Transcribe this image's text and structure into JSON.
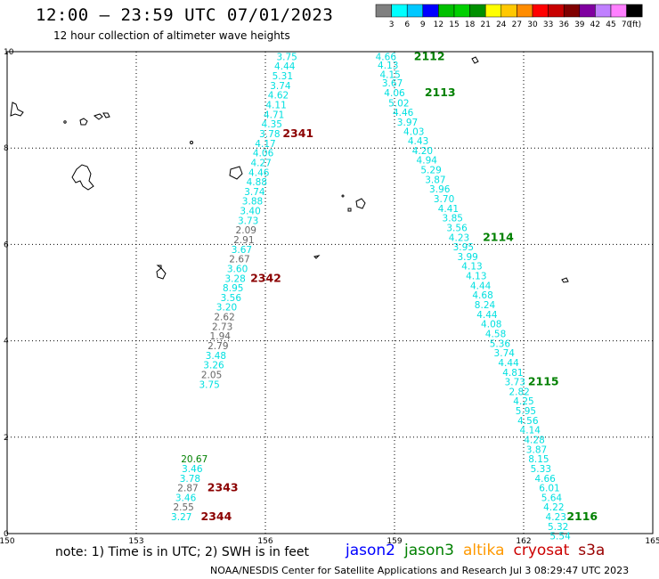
{
  "title": "12:00 – 23:59 UTC 07/01/2023",
  "subtitle": "12 hour collection of altimeter wave heights",
  "note": "note:  1) Time is in UTC;  2) SWH is in feet",
  "satellites": [
    {
      "name": "jason2",
      "color": "#0000ff"
    },
    {
      "name": "jason3",
      "color": "#008000"
    },
    {
      "name": "altika",
      "color": "#ff9900"
    },
    {
      "name": "cryosat",
      "color": "#cc0000"
    },
    {
      "name": "s3a",
      "color": "#990000"
    }
  ],
  "credit": "NOAA/NESDIS Center for Satellite Applications and Research    Jul  3 08:29:47 UTC 2023",
  "colorbar": {
    "levels": [
      "3",
      "6",
      "9",
      "12",
      "15",
      "18",
      "21",
      "24",
      "27",
      "30",
      "33",
      "36",
      "39",
      "42",
      "45",
      "70"
    ],
    "unit": "(ft)",
    "colors": [
      "#808080",
      "#00ffff",
      "#00c8ff",
      "#0000ff",
      "#00c000",
      "#00d000",
      "#009000",
      "#ffff00",
      "#ffc800",
      "#ff8c00",
      "#ff0000",
      "#c80000",
      "#800000",
      "#8000a0",
      "#c080ff",
      "#ff80ff",
      "#000000"
    ]
  },
  "chart_data": {
    "type": "scatter",
    "xlabel": "",
    "ylabel": "",
    "xlim": [
      150,
      165
    ],
    "ylim": [
      0,
      10
    ],
    "x_ticks": [
      "150",
      "153",
      "156",
      "159",
      "162",
      "165"
    ],
    "y_ticks": [
      "0",
      "2",
      "4",
      "6",
      "8",
      "10"
    ],
    "grid": true,
    "series": [
      {
        "name": "jason3",
        "text_color": "#00e0e0",
        "points": [
          {
            "x": 158.8,
            "y": 9.9,
            "v": "4.66"
          },
          {
            "x": 158.85,
            "y": 9.72,
            "v": "4.13"
          },
          {
            "x": 158.9,
            "y": 9.53,
            "v": "4.15"
          },
          {
            "x": 158.95,
            "y": 9.35,
            "v": "3.67"
          },
          {
            "x": 159.0,
            "y": 9.15,
            "v": "4.06"
          },
          {
            "x": 159.1,
            "y": 8.94,
            "v": "5.02"
          },
          {
            "x": 159.2,
            "y": 8.74,
            "v": "4.46"
          },
          {
            "x": 159.3,
            "y": 8.54,
            "v": "3.97"
          },
          {
            "x": 159.45,
            "y": 8.35,
            "v": "4.03"
          },
          {
            "x": 159.55,
            "y": 8.15,
            "v": "4.43"
          },
          {
            "x": 159.65,
            "y": 7.95,
            "v": "4.20"
          },
          {
            "x": 159.75,
            "y": 7.75,
            "v": "4.94"
          },
          {
            "x": 159.85,
            "y": 7.55,
            "v": "5.29"
          },
          {
            "x": 159.95,
            "y": 7.35,
            "v": "3.87"
          },
          {
            "x": 160.05,
            "y": 7.15,
            "v": "3.96"
          },
          {
            "x": 160.15,
            "y": 6.95,
            "v": "3.70"
          },
          {
            "x": 160.25,
            "y": 6.75,
            "v": "4.41"
          },
          {
            "x": 160.35,
            "y": 6.55,
            "v": "3.85"
          },
          {
            "x": 160.45,
            "y": 6.35,
            "v": "3.56"
          },
          {
            "x": 160.5,
            "y": 6.15,
            "v": "4.23"
          },
          {
            "x": 160.6,
            "y": 5.95,
            "v": "3.95"
          },
          {
            "x": 160.7,
            "y": 5.75,
            "v": "3.99"
          },
          {
            "x": 160.8,
            "y": 5.55,
            "v": "4.13"
          },
          {
            "x": 160.9,
            "y": 5.35,
            "v": "4.13"
          },
          {
            "x": 161.0,
            "y": 5.15,
            "v": "4.44"
          },
          {
            "x": 161.05,
            "y": 4.95,
            "v": "4.68"
          },
          {
            "x": 161.1,
            "y": 4.75,
            "v": "8.24"
          },
          {
            "x": 161.15,
            "y": 4.55,
            "v": "4.44"
          },
          {
            "x": 161.25,
            "y": 4.35,
            "v": "4.08"
          },
          {
            "x": 161.35,
            "y": 4.15,
            "v": "4.58"
          },
          {
            "x": 161.45,
            "y": 3.95,
            "v": "5.36"
          },
          {
            "x": 161.55,
            "y": 3.75,
            "v": "3.74"
          },
          {
            "x": 161.65,
            "y": 3.55,
            "v": "4.44"
          },
          {
            "x": 161.75,
            "y": 3.35,
            "v": "4.81"
          },
          {
            "x": 161.8,
            "y": 3.15,
            "v": "3.73"
          },
          {
            "x": 161.9,
            "y": 2.95,
            "v": "2.82"
          },
          {
            "x": 162.0,
            "y": 2.75,
            "v": "4.25"
          },
          {
            "x": 162.05,
            "y": 2.55,
            "v": "5.95"
          },
          {
            "x": 162.1,
            "y": 2.35,
            "v": "4.56"
          },
          {
            "x": 162.15,
            "y": 2.15,
            "v": "4.14"
          },
          {
            "x": 162.25,
            "y": 1.95,
            "v": "4.28"
          },
          {
            "x": 162.3,
            "y": 1.75,
            "v": "3.87"
          },
          {
            "x": 162.35,
            "y": 1.55,
            "v": "8.15"
          },
          {
            "x": 162.4,
            "y": 1.35,
            "v": "5.33"
          },
          {
            "x": 162.5,
            "y": 1.15,
            "v": "4.66"
          },
          {
            "x": 162.6,
            "y": 0.95,
            "v": "6.01"
          },
          {
            "x": 162.65,
            "y": 0.75,
            "v": "5.64"
          },
          {
            "x": 162.7,
            "y": 0.55,
            "v": "4.22"
          },
          {
            "x": 162.75,
            "y": 0.35,
            "v": "4.23"
          },
          {
            "x": 162.8,
            "y": 0.15,
            "v": "5.32"
          },
          {
            "x": 162.85,
            "y": -0.05,
            "v": "5.54"
          }
        ]
      },
      {
        "name": "cryosat",
        "text_color": "#00e0e0",
        "points": [
          {
            "x": 156.5,
            "y": 9.9,
            "v": "3.75"
          },
          {
            "x": 156.45,
            "y": 9.7,
            "v": "4.44"
          },
          {
            "x": 156.4,
            "y": 9.5,
            "v": "5.31"
          },
          {
            "x": 156.35,
            "y": 9.3,
            "v": "3.74"
          },
          {
            "x": 156.3,
            "y": 9.1,
            "v": "4.62"
          },
          {
            "x": 156.25,
            "y": 8.9,
            "v": "4.11"
          },
          {
            "x": 156.2,
            "y": 8.7,
            "v": "4.71"
          },
          {
            "x": 156.15,
            "y": 8.5,
            "v": "4.35"
          },
          {
            "x": 156.1,
            "y": 8.3,
            "v": "3.78"
          },
          {
            "x": 156.0,
            "y": 8.1,
            "v": "4.17"
          },
          {
            "x": 155.95,
            "y": 7.9,
            "v": "4.06"
          },
          {
            "x": 155.9,
            "y": 7.7,
            "v": "4.27"
          },
          {
            "x": 155.85,
            "y": 7.5,
            "v": "4.46"
          },
          {
            "x": 155.8,
            "y": 7.3,
            "v": "4.88"
          },
          {
            "x": 155.75,
            "y": 7.1,
            "v": "3.74"
          },
          {
            "x": 155.7,
            "y": 6.9,
            "v": "3.88"
          },
          {
            "x": 155.65,
            "y": 6.7,
            "v": "3.40"
          },
          {
            "x": 155.6,
            "y": 6.5,
            "v": "3.73"
          },
          {
            "x": 155.55,
            "y": 6.3,
            "v": "2.09",
            "gray": true
          },
          {
            "x": 155.5,
            "y": 6.1,
            "v": "2.91",
            "gray": true
          },
          {
            "x": 155.45,
            "y": 5.9,
            "v": "3.67"
          },
          {
            "x": 155.4,
            "y": 5.7,
            "v": "2.67",
            "gray": true
          },
          {
            "x": 155.35,
            "y": 5.5,
            "v": "3.60"
          },
          {
            "x": 155.3,
            "y": 5.3,
            "v": "3.28"
          },
          {
            "x": 155.25,
            "y": 5.1,
            "v": "8.95"
          },
          {
            "x": 155.2,
            "y": 4.9,
            "v": "3.56"
          },
          {
            "x": 155.1,
            "y": 4.7,
            "v": "3.20"
          },
          {
            "x": 155.05,
            "y": 4.5,
            "v": "2.62",
            "gray": true
          },
          {
            "x": 155.0,
            "y": 4.3,
            "v": "2.73",
            "gray": true
          },
          {
            "x": 154.95,
            "y": 4.1,
            "v": "1.94",
            "gray": true
          },
          {
            "x": 154.9,
            "y": 3.9,
            "v": "2.79",
            "gray": true
          },
          {
            "x": 154.85,
            "y": 3.7,
            "v": "3.48"
          },
          {
            "x": 154.8,
            "y": 3.5,
            "v": "3.26"
          },
          {
            "x": 154.75,
            "y": 3.3,
            "v": "2.05",
            "gray": true
          },
          {
            "x": 154.7,
            "y": 3.1,
            "v": "3.75"
          },
          {
            "x": 154.35,
            "y": 1.55,
            "v": "20.67",
            "green": true
          },
          {
            "x": 154.3,
            "y": 1.35,
            "v": "3.46"
          },
          {
            "x": 154.25,
            "y": 1.15,
            "v": "3.78"
          },
          {
            "x": 154.2,
            "y": 0.95,
            "v": "2.87",
            "gray": true
          },
          {
            "x": 154.15,
            "y": 0.75,
            "v": "3.46"
          },
          {
            "x": 154.1,
            "y": 0.55,
            "v": "2.55",
            "gray": true
          },
          {
            "x": 154.05,
            "y": 0.35,
            "v": "3.27"
          }
        ]
      }
    ],
    "pass_labels": [
      {
        "text": "2112",
        "x": 159.45,
        "y": 9.9,
        "color": "#008000"
      },
      {
        "text": "2113",
        "x": 159.7,
        "y": 9.15,
        "color": "#008000"
      },
      {
        "text": "2114",
        "x": 161.05,
        "y": 6.15,
        "color": "#008000"
      },
      {
        "text": "2115",
        "x": 162.1,
        "y": 3.15,
        "color": "#008000"
      },
      {
        "text": "2116",
        "x": 163.0,
        "y": 0.35,
        "color": "#008000"
      },
      {
        "text": "2341",
        "x": 156.4,
        "y": 8.3,
        "color": "#8b0000"
      },
      {
        "text": "2342",
        "x": 155.65,
        "y": 5.3,
        "color": "#8b0000"
      },
      {
        "text": "2343",
        "x": 154.65,
        "y": 0.95,
        "color": "#8b0000"
      },
      {
        "text": "2344",
        "x": 154.5,
        "y": 0.35,
        "color": "#8b0000"
      }
    ]
  }
}
